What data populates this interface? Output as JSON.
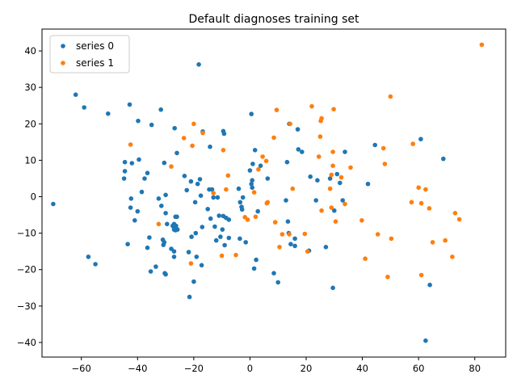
{
  "chart_data": {
    "type": "scatter",
    "title": "Default diagnoses training set",
    "xlabel": "",
    "ylabel": "",
    "xlim": [
      -74,
      91
    ],
    "ylim": [
      -44,
      46
    ],
    "xticks": [
      -60,
      -40,
      -20,
      0,
      20,
      40,
      60,
      80
    ],
    "yticks": [
      -40,
      -30,
      -20,
      -10,
      0,
      10,
      20,
      30,
      40
    ],
    "grid": false,
    "legend_position": "top-left",
    "series": [
      {
        "name": "series 0",
        "color": "#1f77b4",
        "points": [
          [
            -70,
            -2
          ],
          [
            -62,
            28
          ],
          [
            -59,
            24.5
          ],
          [
            -57.5,
            -16.5
          ],
          [
            -55,
            -18.5
          ],
          [
            -50.5,
            22.8
          ],
          [
            -44.5,
            9.5
          ],
          [
            -44.5,
            7
          ],
          [
            -44.8,
            5
          ],
          [
            -43.5,
            -13
          ],
          [
            -42.8,
            25.3
          ],
          [
            -42.5,
            -3
          ],
          [
            -42,
            9.2
          ],
          [
            -42.3,
            -0.5
          ],
          [
            -41,
            -6.5
          ],
          [
            -40,
            -4
          ],
          [
            -39.8,
            20.8
          ],
          [
            -39.5,
            10.2
          ],
          [
            -38.5,
            1.3
          ],
          [
            -37.5,
            5
          ],
          [
            -36.5,
            6.5
          ],
          [
            -36.5,
            -14
          ],
          [
            -35.8,
            -11.2
          ],
          [
            -35.3,
            -20.5
          ],
          [
            -35,
            19.7
          ],
          [
            -33.5,
            -19.2
          ],
          [
            -32.5,
            -0.5
          ],
          [
            -31.7,
            23.9
          ],
          [
            -31.5,
            -2.5
          ],
          [
            -31,
            -11.8
          ],
          [
            -30.8,
            -13.2
          ],
          [
            -30.5,
            9.3
          ],
          [
            -30.5,
            -12.5
          ],
          [
            -30,
            0.5
          ],
          [
            -30.3,
            -21
          ],
          [
            -30,
            -21.3
          ],
          [
            -30,
            -4.5
          ],
          [
            -29.5,
            -7.5
          ],
          [
            -28,
            -14.3
          ],
          [
            -27.5,
            -8
          ],
          [
            -27,
            -9
          ],
          [
            -27,
            -7.5
          ],
          [
            -26.8,
            -8.5
          ],
          [
            -26.5,
            -5.5
          ],
          [
            -26.3,
            -8
          ],
          [
            -26.5,
            -9.2
          ],
          [
            -27,
            -16.5
          ],
          [
            -27,
            -15
          ],
          [
            -26.8,
            18.8
          ],
          [
            -26,
            -5.5
          ],
          [
            -25.8,
            -9
          ],
          [
            -26,
            12
          ],
          [
            -23.3,
            5.7
          ],
          [
            -22.5,
            1.8
          ],
          [
            -21.8,
            -15.2
          ],
          [
            -21.5,
            -27.5
          ],
          [
            -21,
            4.2
          ],
          [
            -20.8,
            -11
          ],
          [
            -20,
            -23.3
          ],
          [
            -19.5,
            -1.5
          ],
          [
            -19,
            -16.5
          ],
          [
            -19.3,
            -10
          ],
          [
            -18.6,
            3.5
          ],
          [
            -18.2,
            36.3
          ],
          [
            -17.8,
            4.8
          ],
          [
            -17.5,
            0.3
          ],
          [
            -17,
            -8.3
          ],
          [
            -17.2,
            -18.8
          ],
          [
            -16.8,
            17.9
          ],
          [
            -15,
            -3.4
          ],
          [
            -14.5,
            2
          ],
          [
            -14.2,
            13.7
          ],
          [
            -14,
            -6
          ],
          [
            -13.5,
            2
          ],
          [
            -13,
            -0.2
          ],
          [
            -12.5,
            -8.2
          ],
          [
            -12,
            -12
          ],
          [
            -11.5,
            -0.2
          ],
          [
            -11,
            -5.2
          ],
          [
            -10.5,
            -11
          ],
          [
            -9.8,
            -9
          ],
          [
            -9.5,
            -5.3
          ],
          [
            -9.5,
            18
          ],
          [
            -9.2,
            17.3
          ],
          [
            -9,
            -13.3
          ],
          [
            -8.5,
            -5.8
          ],
          [
            -7.5,
            -6.3
          ],
          [
            -7.5,
            -11.3
          ],
          [
            -4,
            2.2
          ],
          [
            -3.6,
            -11.5
          ],
          [
            -3.5,
            -1.5
          ],
          [
            -3,
            -2.8
          ],
          [
            -2.8,
            -3.5
          ],
          [
            -2.5,
            -0.2
          ],
          [
            -1.5,
            -12.5
          ],
          [
            0,
            7.2
          ],
          [
            0.5,
            22.7
          ],
          [
            0.5,
            3.5
          ],
          [
            0.8,
            4.5
          ],
          [
            0.8,
            2.5
          ],
          [
            1,
            9
          ],
          [
            1.8,
            12.8
          ],
          [
            1.5,
            -19.7
          ],
          [
            2.2,
            -17.3
          ],
          [
            2.8,
            -4
          ],
          [
            3.8,
            8.5
          ],
          [
            6.3,
            5
          ],
          [
            8.5,
            -21
          ],
          [
            10,
            -23.5
          ],
          [
            12.8,
            -1
          ],
          [
            13.2,
            9.5
          ],
          [
            13.5,
            -6.8
          ],
          [
            13.8,
            -10
          ],
          [
            14,
            20
          ],
          [
            14.5,
            -13
          ],
          [
            16,
            -11.5
          ],
          [
            16,
            -13.5
          ],
          [
            17,
            18.5
          ],
          [
            17.2,
            13
          ],
          [
            18.5,
            12.3
          ],
          [
            21,
            -14.8
          ],
          [
            21.5,
            5.5
          ],
          [
            23.5,
            -1
          ],
          [
            24,
            4.5
          ],
          [
            27,
            -13.8
          ],
          [
            28.5,
            5
          ],
          [
            29.5,
            -25
          ],
          [
            30,
            -3.8
          ],
          [
            31,
            6.2
          ],
          [
            32,
            3.8
          ],
          [
            33,
            -1
          ],
          [
            33.8,
            12.3
          ],
          [
            42,
            3.5
          ],
          [
            44.5,
            14.2
          ],
          [
            60.8,
            15.8
          ],
          [
            62.5,
            -39.5
          ],
          [
            64,
            -24.2
          ],
          [
            68.8,
            10.4
          ]
        ]
      },
      {
        "name": "series 1",
        "color": "#ff7f0e",
        "points": [
          [
            -42.5,
            14.3
          ],
          [
            -32.5,
            -7.5
          ],
          [
            -28,
            8.3
          ],
          [
            -23.5,
            16.1
          ],
          [
            -21,
            -18.3
          ],
          [
            -20.5,
            14
          ],
          [
            -20,
            20
          ],
          [
            -16.8,
            17.5
          ],
          [
            -13,
            1
          ],
          [
            -10,
            -16.2
          ],
          [
            -9.5,
            12.8
          ],
          [
            -8.5,
            2
          ],
          [
            -7.8,
            5.8
          ],
          [
            -5,
            -16
          ],
          [
            -1.8,
            -5.6
          ],
          [
            -0.8,
            -6.3
          ],
          [
            1.5,
            1.2
          ],
          [
            2,
            -5.5
          ],
          [
            3,
            7.5
          ],
          [
            4.5,
            11
          ],
          [
            5.8,
            9.8
          ],
          [
            6,
            -1.8
          ],
          [
            6.3,
            -1.5
          ],
          [
            8.5,
            16.2
          ],
          [
            9,
            -7
          ],
          [
            9.5,
            23.8
          ],
          [
            10.5,
            -13.8
          ],
          [
            11.5,
            -10.3
          ],
          [
            14,
            -10.3
          ],
          [
            14.3,
            20
          ],
          [
            15.2,
            2.2
          ],
          [
            19.5,
            -10.2
          ],
          [
            20.5,
            -15
          ],
          [
            22,
            24.8
          ],
          [
            24.5,
            11
          ],
          [
            25,
            16.5
          ],
          [
            25.2,
            20.8
          ],
          [
            25.5,
            21.5
          ],
          [
            25.5,
            -3.8
          ],
          [
            28.5,
            2.2
          ],
          [
            29,
            -3
          ],
          [
            29,
            6
          ],
          [
            29.5,
            12.3
          ],
          [
            29.5,
            8.5
          ],
          [
            29.8,
            24
          ],
          [
            30.5,
            -6.8
          ],
          [
            32.5,
            5.3
          ],
          [
            33.8,
            -2
          ],
          [
            35.8,
            8
          ],
          [
            39.8,
            -6.5
          ],
          [
            41,
            -17
          ],
          [
            45.5,
            -10.3
          ],
          [
            47.5,
            13.3
          ],
          [
            48,
            9
          ],
          [
            49,
            -22
          ],
          [
            50,
            27.5
          ],
          [
            50.3,
            -11.5
          ],
          [
            57.5,
            -1.5
          ],
          [
            58,
            14.5
          ],
          [
            60,
            2.5
          ],
          [
            61,
            -21.5
          ],
          [
            61,
            -1.8
          ],
          [
            62.5,
            2
          ],
          [
            63.8,
            -3.2
          ],
          [
            65,
            -12.5
          ],
          [
            69.5,
            -12
          ],
          [
            72,
            -16.5
          ],
          [
            73,
            -4.5
          ],
          [
            74.5,
            -6.2
          ],
          [
            82.5,
            41.7
          ]
        ]
      }
    ]
  }
}
